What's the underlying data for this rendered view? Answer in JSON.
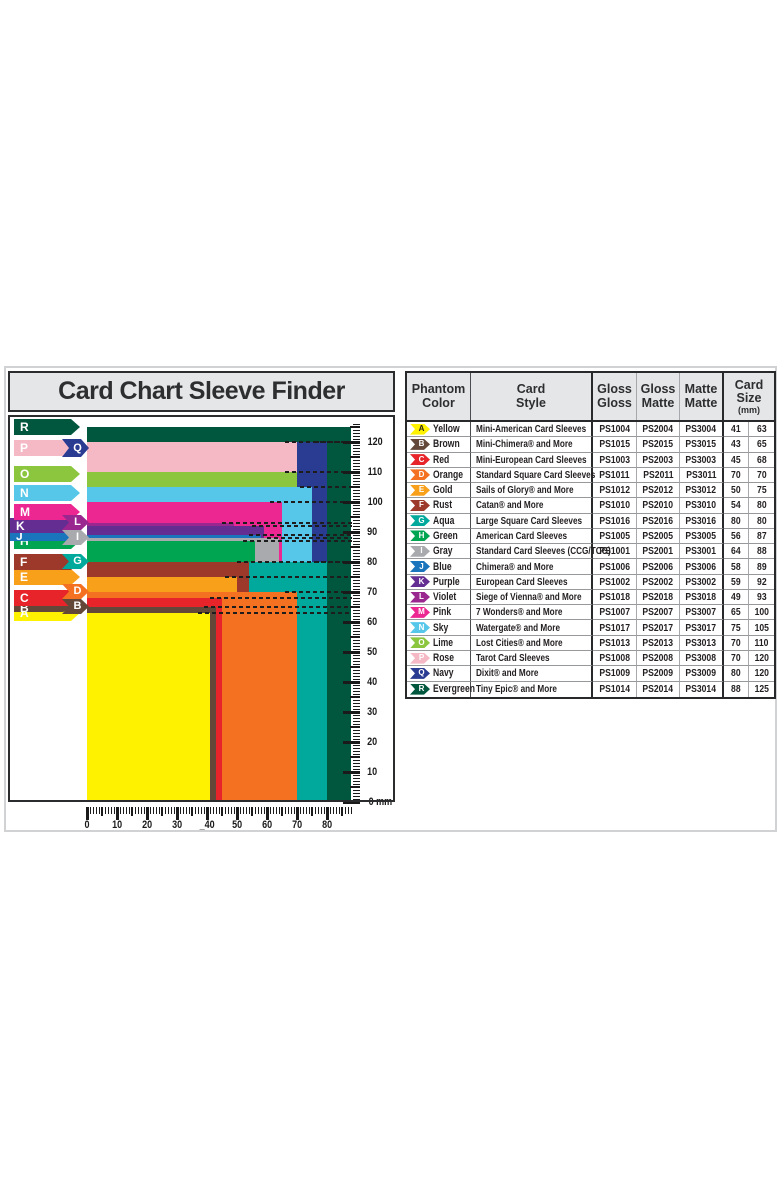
{
  "title": "Card Chart Sleeve Finder",
  "table": {
    "headers": {
      "phantom_color": "Phantom\nColor",
      "card_style": "Card\nStyle",
      "gloss_gloss": "Gloss\nGloss",
      "gloss_matte": "Gloss\nMatte",
      "matte_matte": "Matte\nMatte",
      "card_size": "Card\nSize",
      "card_size_unit": "(mm)"
    }
  },
  "cards": [
    {
      "letter": "A",
      "color_name": "Yellow",
      "hex": "#FFF200",
      "badge_text": "#231F20",
      "style": "Mini-American Card Sleeves",
      "gloss_gloss": "PS1004",
      "gloss_matte": "PS2004",
      "matte_matte": "PS3004",
      "width_mm": 41,
      "height_mm": 63,
      "label": "arrow"
    },
    {
      "letter": "B",
      "color_name": "Brown",
      "hex": "#63483A",
      "badge_text": "#FFFFFF",
      "style": "Mini-Chimera® and More",
      "gloss_gloss": "PS1015",
      "gloss_matte": "PS2015",
      "matte_matte": "PS3015",
      "width_mm": 43,
      "height_mm": 65,
      "label": "thin-arrow-tag"
    },
    {
      "letter": "C",
      "color_name": "Red",
      "hex": "#E62429",
      "badge_text": "#FFFFFF",
      "style": "Mini-European Card Sleeves",
      "gloss_gloss": "PS1003",
      "gloss_matte": "PS2003",
      "matte_matte": "PS3003",
      "width_mm": 45,
      "height_mm": 68,
      "label": "arrow"
    },
    {
      "letter": "D",
      "color_name": "Orange",
      "hex": "#F37121",
      "badge_text": "#FFFFFF",
      "style": "Standard Square Card Sleeves",
      "gloss_gloss": "PS1011",
      "gloss_matte": "PS2011",
      "matte_matte": "PS3011",
      "width_mm": 70,
      "height_mm": 70,
      "label": "tag"
    },
    {
      "letter": "E",
      "color_name": "Gold",
      "hex": "#F9A01B",
      "badge_text": "#FFFFFF",
      "style": "Sails of Glory® and More",
      "gloss_gloss": "PS1012",
      "gloss_matte": "PS2012",
      "matte_matte": "PS3012",
      "width_mm": 50,
      "height_mm": 75,
      "label": "arrow"
    },
    {
      "letter": "F",
      "color_name": "Rust",
      "hex": "#9C392A",
      "badge_text": "#FFFFFF",
      "style": "Catan® and More",
      "gloss_gloss": "PS1010",
      "gloss_matte": "PS2010",
      "matte_matte": "PS3010",
      "width_mm": 54,
      "height_mm": 80,
      "label": "arrow"
    },
    {
      "letter": "G",
      "color_name": "Aqua",
      "hex": "#00A99B",
      "badge_text": "#FFFFFF",
      "style": "Large Square Card Sleeves",
      "gloss_gloss": "PS1016",
      "gloss_matte": "PS2016",
      "matte_matte": "PS3016",
      "width_mm": 80,
      "height_mm": 80,
      "label": "tag"
    },
    {
      "letter": "H",
      "color_name": "Green",
      "hex": "#00A551",
      "badge_text": "#FFFFFF",
      "style": "American Card Sleeves",
      "gloss_gloss": "PS1005",
      "gloss_matte": "PS2005",
      "matte_matte": "PS3005",
      "width_mm": 56,
      "height_mm": 87,
      "label": "arrow"
    },
    {
      "letter": "I",
      "color_name": "Gray",
      "hex": "#A8AAAD",
      "badge_text": "#FFFFFF",
      "style": "Standard Card Sleeves (CCG/TCG)",
      "gloss_gloss": "PS1001",
      "gloss_matte": "PS2001",
      "matte_matte": "PS3001",
      "width_mm": 64,
      "height_mm": 88,
      "label": "tag"
    },
    {
      "letter": "J",
      "color_name": "Blue",
      "hex": "#1B75BC",
      "badge_text": "#FFFFFF",
      "style": "Chimera® and More",
      "gloss_gloss": "PS1006",
      "gloss_matte": "PS2006",
      "matte_matte": "PS3006",
      "width_mm": 58,
      "height_mm": 89,
      "label": "thin-arrow-left"
    },
    {
      "letter": "K",
      "color_name": "Purple",
      "hex": "#632D91",
      "badge_text": "#FFFFFF",
      "style": "European Card Sleeves",
      "gloss_gloss": "PS1002",
      "gloss_matte": "PS2002",
      "matte_matte": "PS3002",
      "width_mm": 59,
      "height_mm": 92,
      "label": "arrow-left"
    },
    {
      "letter": "L",
      "color_name": "Violet",
      "hex": "#9A278F",
      "badge_text": "#FFFFFF",
      "style": "Siege of Vienna® and More",
      "gloss_gloss": "PS1018",
      "gloss_matte": "PS2018",
      "matte_matte": "PS3018",
      "width_mm": 49,
      "height_mm": 93,
      "label": "tag"
    },
    {
      "letter": "M",
      "color_name": "Pink",
      "hex": "#EC2791",
      "badge_text": "#FFFFFF",
      "style": "7 Wonders® and More",
      "gloss_gloss": "PS1007",
      "gloss_matte": "PS2007",
      "matte_matte": "PS3007",
      "width_mm": 65,
      "height_mm": 100,
      "label": "arrow"
    },
    {
      "letter": "N",
      "color_name": "Sky",
      "hex": "#56C7E9",
      "badge_text": "#FFFFFF",
      "style": "Watergate® and More",
      "gloss_gloss": "PS1017",
      "gloss_matte": "PS2017",
      "matte_matte": "PS3017",
      "width_mm": 75,
      "height_mm": 105,
      "label": "arrow"
    },
    {
      "letter": "O",
      "color_name": "Lime",
      "hex": "#8CC63F",
      "badge_text": "#FFFFFF",
      "style": "Lost Cities® and More",
      "gloss_gloss": "PS1013",
      "gloss_matte": "PS2013",
      "matte_matte": "PS3013",
      "width_mm": 70,
      "height_mm": 110,
      "label": "arrow"
    },
    {
      "letter": "P",
      "color_name": "Rose",
      "hex": "#F5B9C6",
      "badge_text": "#FFFFFF",
      "style": "Tarot Card Sleeves",
      "gloss_gloss": "PS1008",
      "gloss_matte": "PS2008",
      "matte_matte": "PS3008",
      "width_mm": 70,
      "height_mm": 120,
      "label": "arrow"
    },
    {
      "letter": "Q",
      "color_name": "Navy",
      "hex": "#2A3B92",
      "badge_text": "#FFFFFF",
      "style": "Dixit® and More",
      "gloss_gloss": "PS1009",
      "gloss_matte": "PS2009",
      "matte_matte": "PS3009",
      "width_mm": 80,
      "height_mm": 120,
      "label": "tag"
    },
    {
      "letter": "R",
      "color_name": "Evergreen",
      "hex": "#00573E",
      "badge_text": "#FFFFFF",
      "style": "Tiny Epic® and More",
      "gloss_gloss": "PS1014",
      "gloss_matte": "PS2014",
      "matte_matte": "PS3014",
      "width_mm": 88,
      "height_mm": 125,
      "label": "arrow"
    }
  ],
  "chart_data": {
    "type": "nested-rectangles",
    "title": "Card Chart Sleeve Finder",
    "unit": "mm",
    "x_axis": {
      "range_mm": [
        0,
        88
      ],
      "major_step": 10,
      "minor_step": 1
    },
    "y_axis": {
      "range_mm": [
        0,
        126
      ],
      "major_step": 10,
      "minor_step": 1
    },
    "x_tick_labels": [
      "0",
      "10",
      "20",
      "30",
      "_40",
      "50",
      "60",
      "70",
      "80"
    ],
    "y_tick_labels": [
      "120",
      "110",
      "100",
      "90",
      "80",
      "70",
      "60",
      "50",
      "40",
      "30",
      "20",
      "10"
    ],
    "y_zero_label": "0 mm",
    "categories": [
      "A",
      "B",
      "C",
      "D",
      "E",
      "F",
      "G",
      "H",
      "I",
      "J",
      "K",
      "L",
      "M",
      "N",
      "O",
      "P",
      "Q",
      "R"
    ],
    "series": [
      {
        "name": "width_mm",
        "values": [
          41,
          43,
          45,
          70,
          50,
          54,
          80,
          56,
          64,
          58,
          59,
          49,
          65,
          75,
          70,
          70,
          80,
          88
        ]
      },
      {
        "name": "height_mm",
        "values": [
          63,
          65,
          68,
          70,
          75,
          80,
          80,
          87,
          88,
          89,
          92,
          93,
          100,
          105,
          110,
          120,
          120,
          125
        ]
      }
    ]
  },
  "colors": {
    "border_dark": "#2A2C2E",
    "outer_frame": "#D1D2D4",
    "header_bg": "#E5E6E7",
    "text": "#231F20"
  }
}
